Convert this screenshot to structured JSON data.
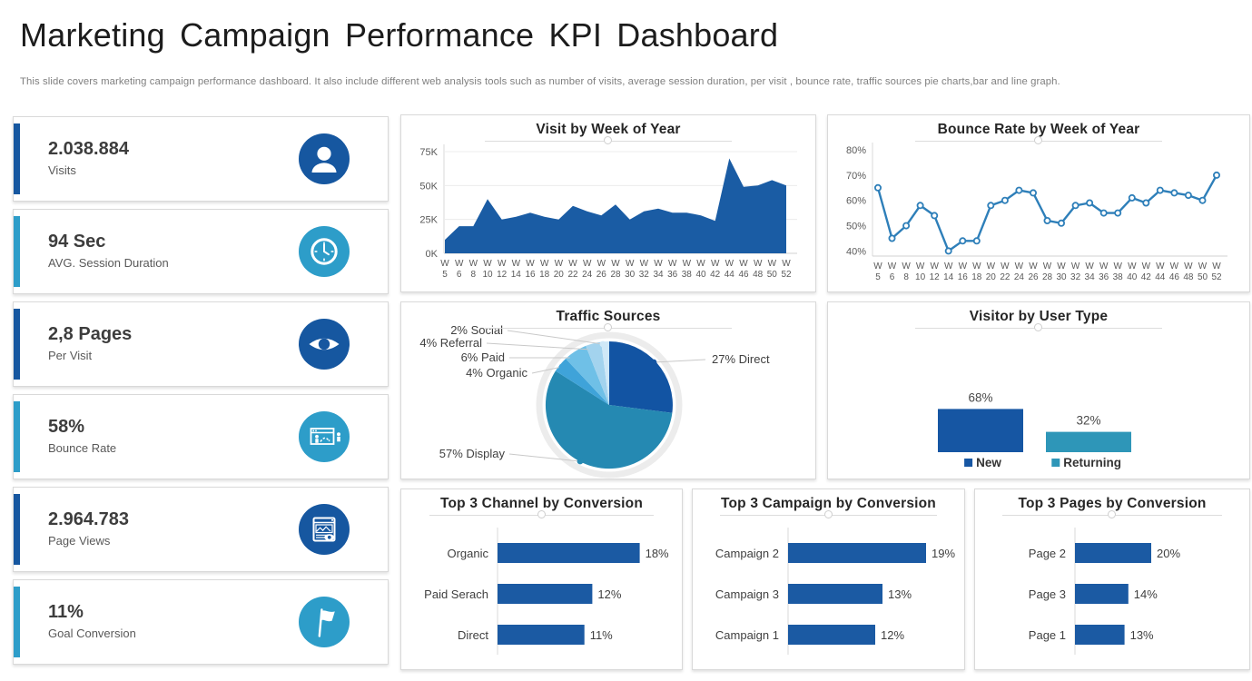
{
  "header": {
    "title": "Marketing Campaign Performance KPI Dashboard",
    "subtitle": "This slide covers marketing campaign performance dashboard. It also include different web analysis tools such as number of visits, average session duration, per visit , bounce rate, traffic sources pie charts,bar and line graph."
  },
  "colors": {
    "dark_blue": "#1657A0",
    "teal": "#2D9DC9",
    "bar_blue": "#1B5AA3",
    "area_blue": "#1A5CA4",
    "line_blue": "#2E7FB9",
    "returning_teal": "#2E96B8"
  },
  "kpis": [
    {
      "value": "2.038.884",
      "label": "Visits",
      "icon": "user-icon",
      "accent": "#1657A0"
    },
    {
      "value": "94 Sec",
      "label": "AVG. Session Duration",
      "icon": "clock-icon",
      "accent": "#2D9DC9"
    },
    {
      "value": "2,8 Pages",
      "label": "Per Visit",
      "icon": "eye-icon",
      "accent": "#1657A0"
    },
    {
      "value": "58%",
      "label": "Bounce Rate",
      "icon": "bounce-icon",
      "accent": "#2D9DC9"
    },
    {
      "value": "2.964.783",
      "label": "Page Views",
      "icon": "page-views-icon",
      "accent": "#1657A0"
    },
    {
      "value": "11%",
      "label": "Goal Conversion",
      "icon": "flag-icon",
      "accent": "#2D9DC9"
    }
  ],
  "chart_data": [
    {
      "id": "visits_by_week",
      "type": "area",
      "title": "Visit by Week of Year",
      "week_prefix": "W",
      "categories": [
        "5",
        "6",
        "8",
        "10",
        "12",
        "14",
        "16",
        "18",
        "20",
        "22",
        "24",
        "26",
        "28",
        "30",
        "32",
        "34",
        "36",
        "38",
        "40",
        "42",
        "44",
        "46",
        "48",
        "50",
        "52"
      ],
      "values": [
        10,
        20,
        20,
        40,
        25,
        27,
        30,
        27,
        25,
        35,
        31,
        28,
        36,
        25,
        31,
        33,
        30,
        30,
        28,
        24,
        70,
        49,
        50,
        54,
        50
      ],
      "unit": "K",
      "ylim": [
        0,
        75
      ],
      "grid": true,
      "yticks": [
        {
          "v": 0,
          "l": "0K"
        },
        {
          "v": 25,
          "l": "25K"
        },
        {
          "v": 50,
          "l": "50K"
        },
        {
          "v": 75,
          "l": "75K"
        }
      ],
      "color": "#1A5CA4"
    },
    {
      "id": "bounce_by_week",
      "type": "line",
      "title": "Bounce Rate by Week of Year",
      "week_prefix": "W",
      "categories": [
        "5",
        "6",
        "8",
        "10",
        "12",
        "14",
        "16",
        "18",
        "20",
        "22",
        "24",
        "26",
        "28",
        "30",
        "32",
        "34",
        "36",
        "38",
        "40",
        "42",
        "44",
        "46",
        "48",
        "50",
        "52"
      ],
      "values": [
        65,
        45,
        50,
        58,
        54,
        40,
        44,
        44,
        58,
        60,
        64,
        63,
        52,
        51,
        58,
        59,
        55,
        55,
        61,
        59,
        64,
        63,
        62,
        60,
        70
      ],
      "unit": "%",
      "ylim": [
        38,
        80
      ],
      "grid": false,
      "yticks": [
        {
          "v": 40,
          "l": "40%"
        },
        {
          "v": 50,
          "l": "50%"
        },
        {
          "v": 60,
          "l": "60%"
        },
        {
          "v": 70,
          "l": "70%"
        },
        {
          "v": 80,
          "l": "80%"
        }
      ],
      "color": "#2E7FB9"
    },
    {
      "id": "traffic_sources",
      "type": "pie",
      "title": "Traffic Sources",
      "slices": [
        {
          "label": "Direct",
          "pct": 27,
          "color": "#1254A3"
        },
        {
          "label": "Display",
          "pct": 57,
          "color": "#2589B2"
        },
        {
          "label": "Organic",
          "pct": 4,
          "color": "#3FA3D9"
        },
        {
          "label": "Paid",
          "pct": 6,
          "color": "#6FC0E7"
        },
        {
          "label": "Referral",
          "pct": 4,
          "color": "#A3D3EE"
        },
        {
          "label": "Social",
          "pct": 2,
          "color": "#CFE8F7"
        }
      ]
    },
    {
      "id": "visitor_user_type",
      "type": "bar",
      "title": "Visitor by User Type",
      "categories": [
        "New",
        "Returning"
      ],
      "values": [
        68,
        32
      ],
      "unit": "%",
      "colors": [
        "#1656A3",
        "#2E96B8"
      ],
      "legend_position": "bottom"
    },
    {
      "id": "top_channels",
      "type": "hbar",
      "title": "Top 3 Channel by Conversion",
      "categories": [
        "Organic",
        "Paid Serach",
        "Direct"
      ],
      "values": [
        18,
        12,
        11
      ],
      "unit": "%",
      "color": "#1B5AA3"
    },
    {
      "id": "top_campaigns",
      "type": "hbar",
      "title": "Top 3 Campaign by Conversion",
      "categories": [
        "Campaign 2",
        "Campaign 3",
        "Campaign 1"
      ],
      "values": [
        19,
        13,
        12
      ],
      "unit": "%",
      "color": "#1B5AA3"
    },
    {
      "id": "top_pages",
      "type": "hbar",
      "title": "Top 3 Pages by Conversion",
      "categories": [
        "Page 2",
        "Page 3",
        "Page 1"
      ],
      "values": [
        20,
        14,
        13
      ],
      "unit": "%",
      "color": "#1B5AA3"
    }
  ]
}
